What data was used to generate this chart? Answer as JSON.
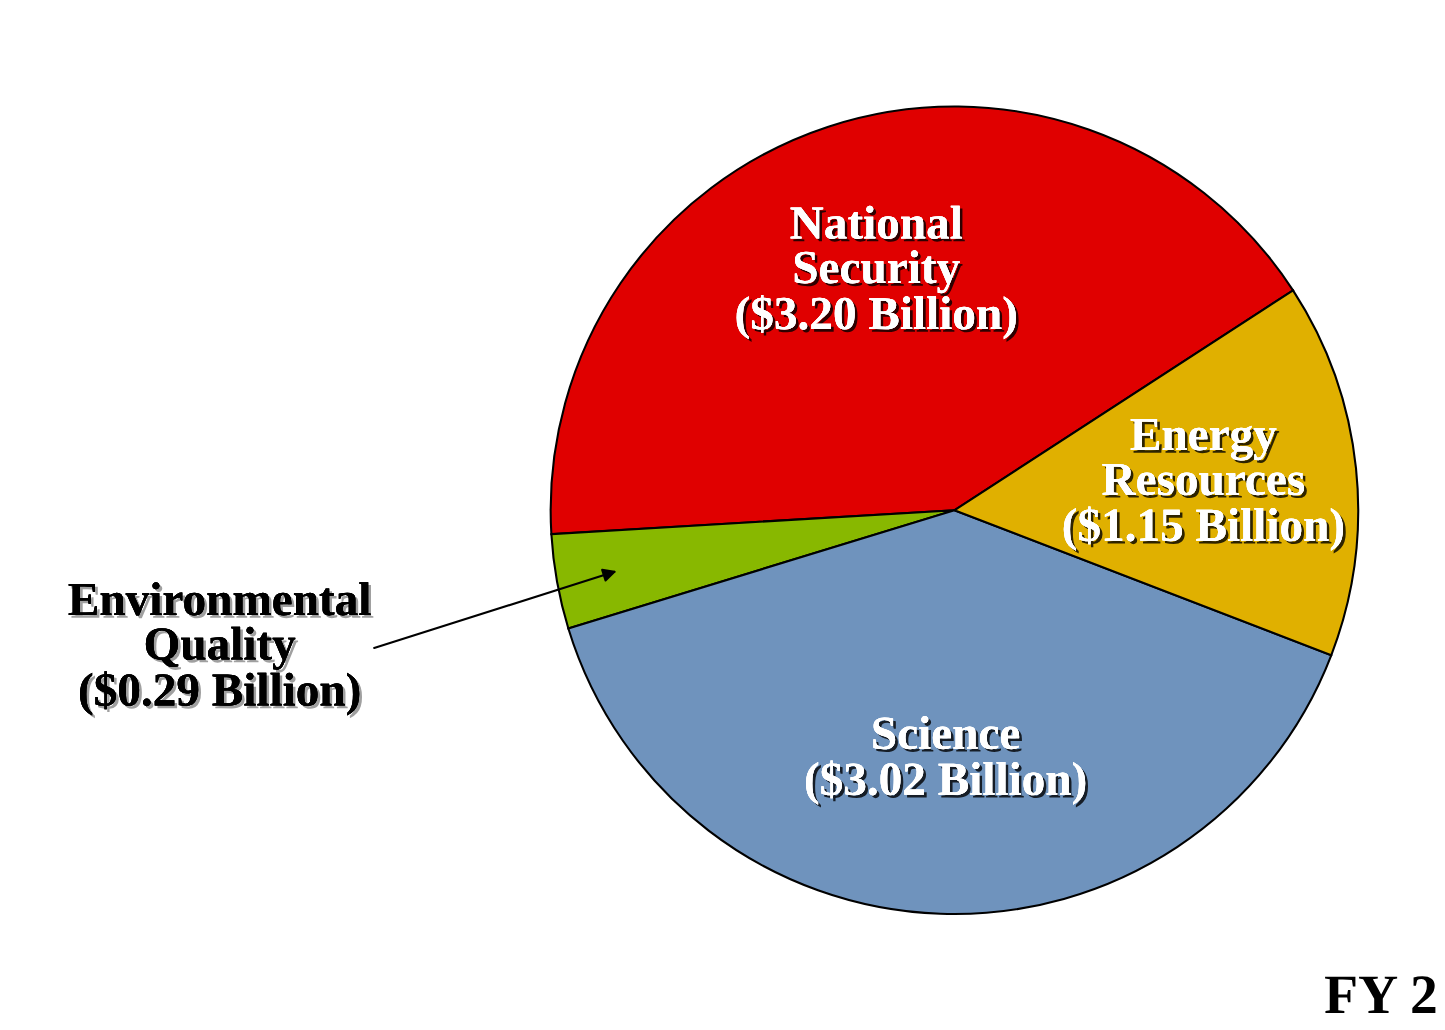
{
  "chart_data": {
    "type": "pie",
    "categories": [
      "National\nSecurity",
      "Environmental\nQuality",
      "Science",
      "Energy\nResources"
    ],
    "values": [
      3.2,
      0.29,
      3.02,
      1.15
    ],
    "colors": [
      "#e00000",
      "#88b800",
      "#6f93bd",
      "#e0b000"
    ],
    "value_labels": [
      "($3.20 Billion)",
      "($0.29 Billion)",
      "($3.02 Billion)",
      "($1.15 Billion)"
    ],
    "annotations": [
      "FY 2"
    ]
  }
}
